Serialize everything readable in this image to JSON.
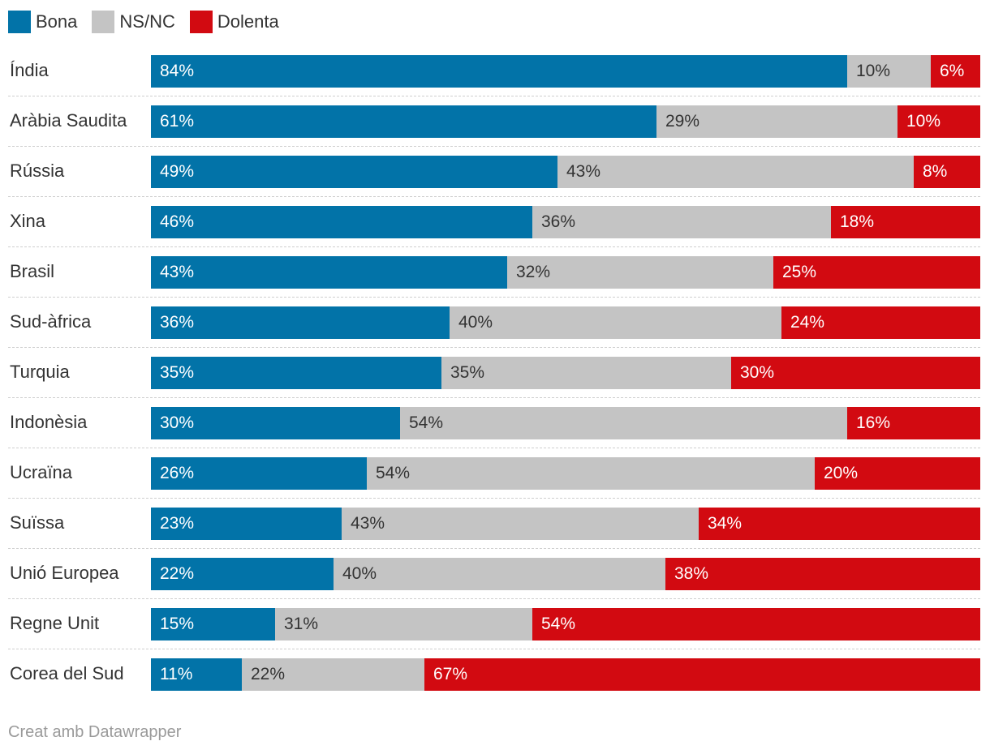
{
  "chart_data": {
    "type": "bar",
    "orientation": "horizontal",
    "stacked": true,
    "normalized": true,
    "categories": [
      "Índia",
      "Aràbia Saudita",
      "Rússia",
      "Xina",
      "Brasil",
      "Sud-àfrica",
      "Turquia",
      "Indonèsia",
      "Ucraïna",
      "Suïssa",
      "Unió Europea",
      "Regne Unit",
      "Corea del Sud"
    ],
    "series": [
      {
        "name": "Bona",
        "color": "#0273a8",
        "text": "dark",
        "values": [
          84,
          61,
          49,
          46,
          43,
          36,
          35,
          30,
          26,
          23,
          22,
          15,
          11
        ]
      },
      {
        "name": "NS/NC",
        "color": "#c4c4c4",
        "text": "light",
        "values": [
          10,
          29,
          43,
          36,
          32,
          40,
          35,
          54,
          54,
          43,
          40,
          31,
          22
        ]
      },
      {
        "name": "Dolenta",
        "color": "#d20a11",
        "text": "dark",
        "values": [
          6,
          10,
          8,
          18,
          25,
          24,
          30,
          16,
          20,
          34,
          38,
          54,
          67
        ]
      }
    ],
    "value_suffix": "%",
    "legend_position": "top-left"
  },
  "footer": {
    "credit": "Creat amb Datawrapper"
  }
}
